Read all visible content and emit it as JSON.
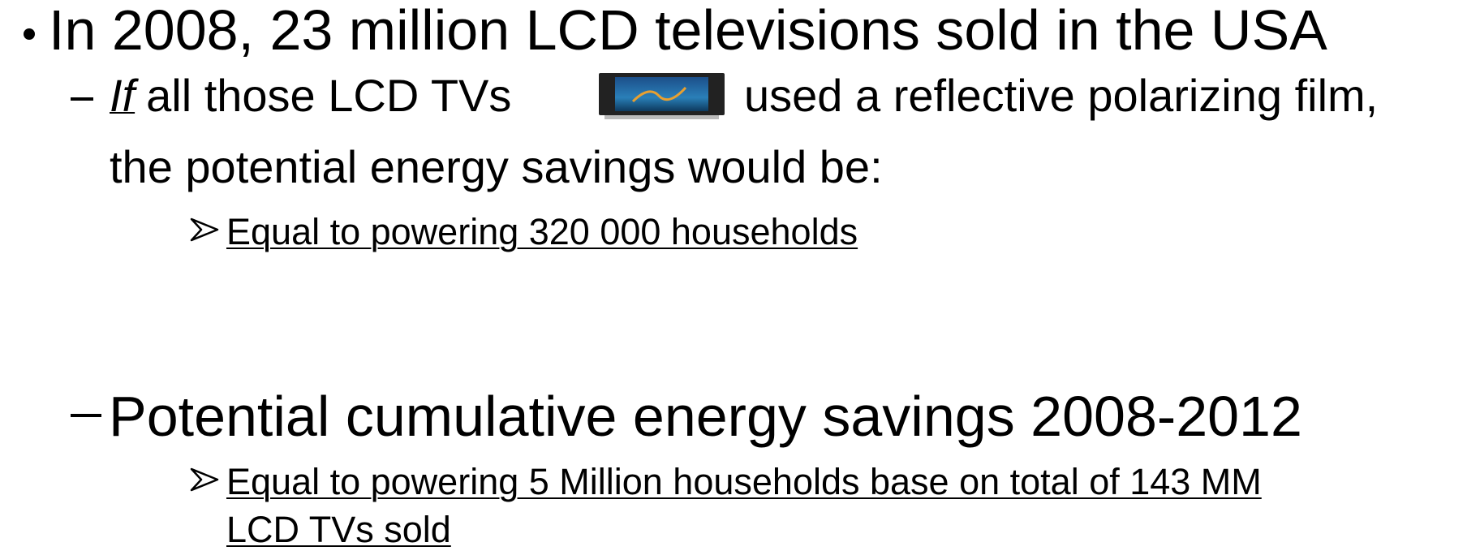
{
  "line1": "In 2008, 23 million LCD televisions sold in the USA",
  "sub1": {
    "emphasis": "If",
    "lines": [
      "all those LCD TVs",
      "used a reflective polarizing film,",
      "the potential energy savings would be:"
    ]
  },
  "point1": "Equal to powering 320 000 households",
  "sub2": "Potential cumulative energy savings 2008-2012",
  "point2": [
    "Equal to powering 5 Million households base on total of 143 MM",
    "LCD TVs sold"
  ]
}
